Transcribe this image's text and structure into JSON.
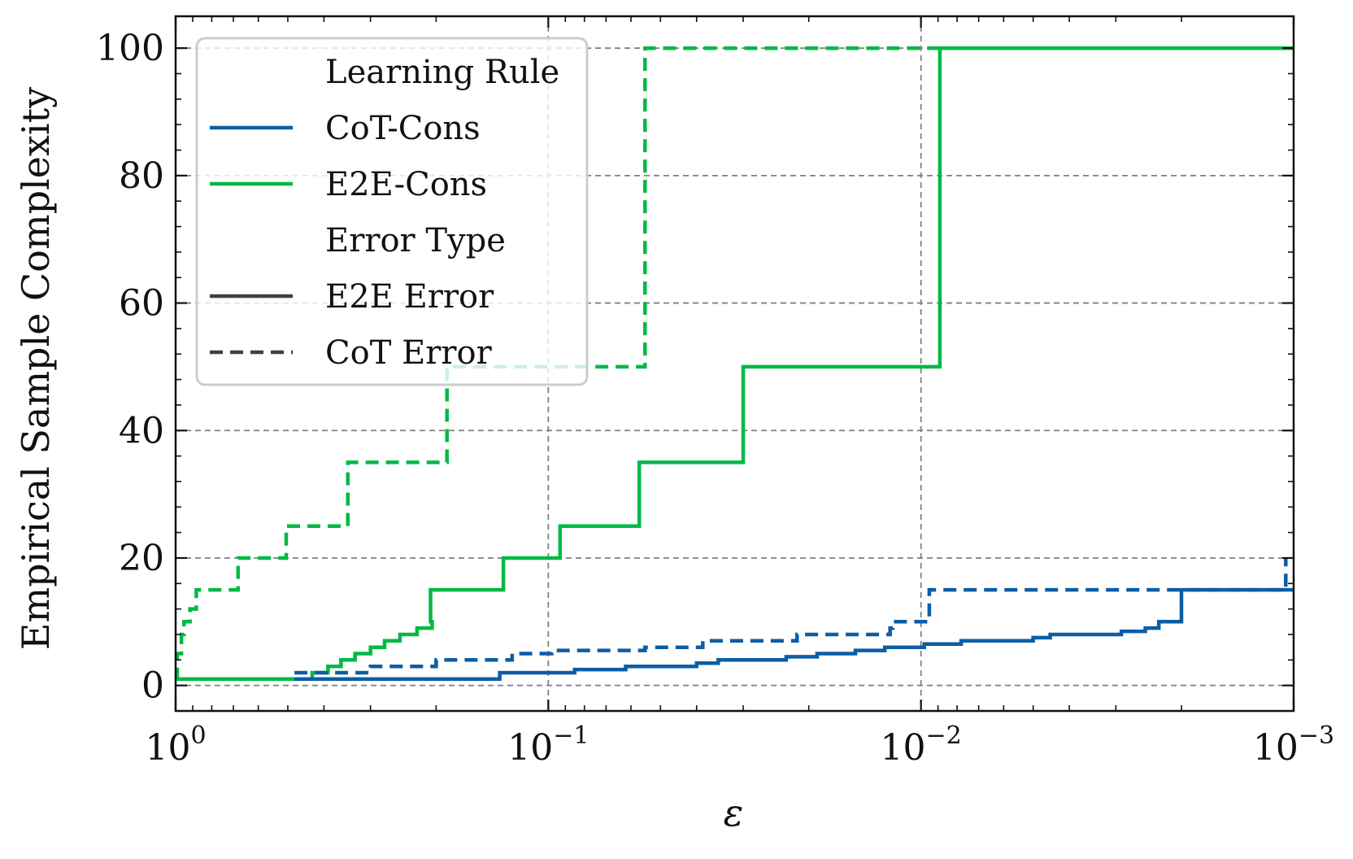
{
  "chart_data": {
    "type": "line",
    "xlabel": "ε",
    "ylabel": "Empirical Sample Complexity",
    "xscale": "log",
    "x_direction": "decreasing",
    "xlim": [
      1,
      0.001
    ],
    "ylim": [
      -4,
      105
    ],
    "grid": true,
    "legend_position": "top-left",
    "x_ticks": [
      {
        "value": 1,
        "base": "10",
        "exp": "0"
      },
      {
        "value": 0.1,
        "base": "10",
        "exp": "−1"
      },
      {
        "value": 0.01,
        "base": "10",
        "exp": "−2"
      },
      {
        "value": 0.001,
        "base": "10",
        "exp": "−3"
      }
    ],
    "y_ticks": [
      0,
      20,
      40,
      60,
      80,
      100
    ],
    "legend": {
      "groups": [
        {
          "title": "Learning Rule",
          "items": [
            {
              "label": "CoT-Cons",
              "color": "#0C5DA5",
              "style": "solid"
            },
            {
              "label": "E2E-Cons",
              "color": "#00B945",
              "style": "solid"
            }
          ]
        },
        {
          "title": "Error Type",
          "items": [
            {
              "label": "E2E Error",
              "color": "#404040",
              "style": "solid"
            },
            {
              "label": "CoT Error",
              "color": "#404040",
              "style": "dashed"
            }
          ]
        }
      ]
    },
    "series": [
      {
        "rule": "E2E-Cons",
        "error": "CoT Error",
        "color": "#00B945",
        "style": "dashed",
        "points": [
          [
            1.0,
            1
          ],
          [
            0.99,
            5
          ],
          [
            0.965,
            8
          ],
          [
            0.95,
            10
          ],
          [
            0.915,
            12
          ],
          [
            0.88,
            15
          ],
          [
            0.68,
            20
          ],
          [
            0.505,
            25
          ],
          [
            0.345,
            35
          ],
          [
            0.187,
            50
          ],
          [
            0.055,
            100
          ],
          [
            0.001,
            100
          ]
        ]
      },
      {
        "rule": "E2E-Cons",
        "error": "E2E Error",
        "color": "#00B945",
        "style": "solid",
        "points": [
          [
            1.0,
            1
          ],
          [
            0.43,
            2
          ],
          [
            0.39,
            3
          ],
          [
            0.36,
            4
          ],
          [
            0.33,
            5
          ],
          [
            0.3,
            6
          ],
          [
            0.275,
            7
          ],
          [
            0.25,
            8
          ],
          [
            0.225,
            9
          ],
          [
            0.205,
            10
          ],
          [
            0.207,
            15
          ],
          [
            0.132,
            20
          ],
          [
            0.093,
            25
          ],
          [
            0.057,
            35
          ],
          [
            0.03,
            50
          ],
          [
            0.0089,
            100
          ],
          [
            0.001,
            100
          ]
        ]
      },
      {
        "rule": "CoT-Cons",
        "error": "CoT Error",
        "color": "#0C5DA5",
        "style": "dashed",
        "points": [
          [
            0.48,
            2
          ],
          [
            0.3,
            3
          ],
          [
            0.2,
            4
          ],
          [
            0.125,
            5
          ],
          [
            0.098,
            5.5
          ],
          [
            0.055,
            6
          ],
          [
            0.0385,
            7
          ],
          [
            0.0215,
            8
          ],
          [
            0.0121,
            9
          ],
          [
            0.0119,
            10
          ],
          [
            0.0095,
            15
          ],
          [
            0.00105,
            20
          ]
        ]
      },
      {
        "rule": "CoT-Cons",
        "error": "E2E Error",
        "color": "#0C5DA5",
        "style": "solid",
        "points": [
          [
            0.48,
            1
          ],
          [
            0.135,
            2
          ],
          [
            0.085,
            2.5
          ],
          [
            0.062,
            3
          ],
          [
            0.04,
            3.5
          ],
          [
            0.035,
            4
          ],
          [
            0.023,
            4.5
          ],
          [
            0.019,
            5
          ],
          [
            0.015,
            5.5
          ],
          [
            0.0125,
            6
          ],
          [
            0.0098,
            6.5
          ],
          [
            0.0078,
            7
          ],
          [
            0.005,
            7.5
          ],
          [
            0.0045,
            8
          ],
          [
            0.0029,
            8.5
          ],
          [
            0.0025,
            9
          ],
          [
            0.0023,
            10
          ],
          [
            0.002,
            15
          ],
          [
            0.001,
            15
          ]
        ]
      }
    ]
  }
}
